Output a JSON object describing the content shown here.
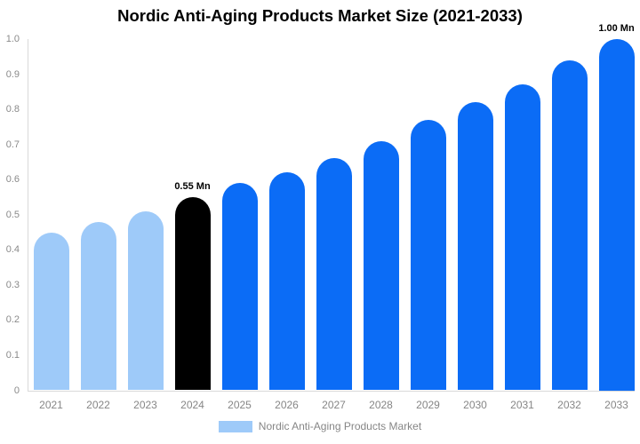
{
  "title": "Nordic Anti-Aging Products Market Size (2021-2033)",
  "legend": {
    "label": "Nordic Anti-Aging Products Market"
  },
  "colors": {
    "light_blue": "#9ecaf9",
    "accent_blue": "#0b6cf6",
    "highlight_black": "#000000",
    "axis_text": "#8a8a8a",
    "axis_line": "#d9d9d9",
    "title_text": "#000000"
  },
  "chart_data": {
    "type": "bar",
    "title": "Nordic Anti-Aging Products Market Size (2021-2033)",
    "xlabel": "",
    "ylabel": "",
    "categories": [
      "2021",
      "2022",
      "2023",
      "2024",
      "2025",
      "2026",
      "2027",
      "2028",
      "2029",
      "2030",
      "2031",
      "2032",
      "2033"
    ],
    "values": [
      0.45,
      0.48,
      0.51,
      0.55,
      0.59,
      0.62,
      0.66,
      0.71,
      0.77,
      0.82,
      0.87,
      0.94,
      1.0
    ],
    "bar_colors": [
      "#9ecaf9",
      "#9ecaf9",
      "#9ecaf9",
      "#000000",
      "#0b6cf6",
      "#0b6cf6",
      "#0b6cf6",
      "#0b6cf6",
      "#0b6cf6",
      "#0b6cf6",
      "#0b6cf6",
      "#0b6cf6",
      "#0b6cf6"
    ],
    "unit": "Mn",
    "ylim": [
      0,
      1.0
    ],
    "yticks": [
      "0",
      "0.1",
      "0.2",
      "0.3",
      "0.4",
      "0.5",
      "0.6",
      "0.7",
      "0.8",
      "0.9",
      "1.0"
    ],
    "grid": false,
    "legend_entries": [
      {
        "label": "Nordic Anti-Aging Products Market",
        "color": "#9ecaf9"
      }
    ],
    "legend_position": "bottom",
    "annotations": [
      {
        "category": "2024",
        "text": "0.55 Mn"
      },
      {
        "category": "2033",
        "text": "1.00 Mn"
      }
    ]
  }
}
